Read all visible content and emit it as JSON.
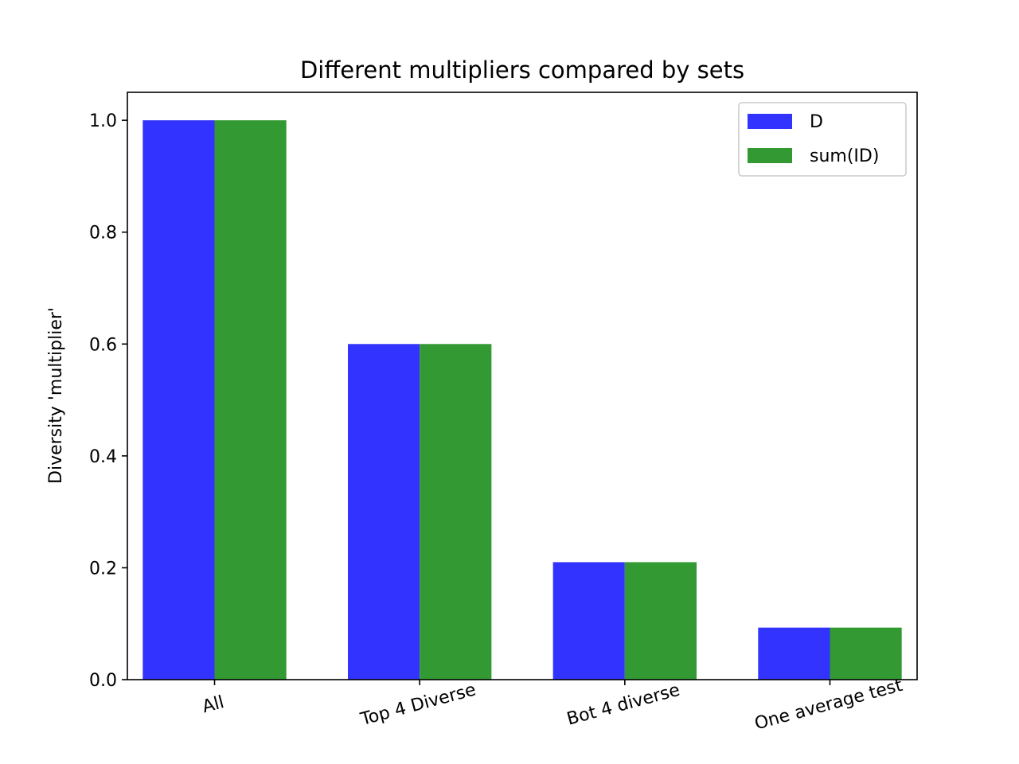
{
  "chart_data": {
    "type": "bar",
    "title": "Different multipliers compared by sets",
    "xlabel": "",
    "ylabel": "Diversity 'multiplier'",
    "categories": [
      "All",
      "Top 4 Diverse",
      "Bot 4 diverse",
      "One average test"
    ],
    "series": [
      {
        "name": "D",
        "values": [
          1.0,
          0.6,
          0.21,
          0.093
        ],
        "color": "#3333ff"
      },
      {
        "name": "sum(ID)",
        "values": [
          1.0,
          0.6,
          0.21,
          0.093
        ],
        "color": "#339933"
      }
    ],
    "ylim": [
      0,
      1.05
    ],
    "yticks": [
      "0.0",
      "0.2",
      "0.4",
      "0.6",
      "0.8",
      "1.0"
    ],
    "grid": false,
    "legend_position": "top-right",
    "xtick_rotation": "rotated"
  }
}
